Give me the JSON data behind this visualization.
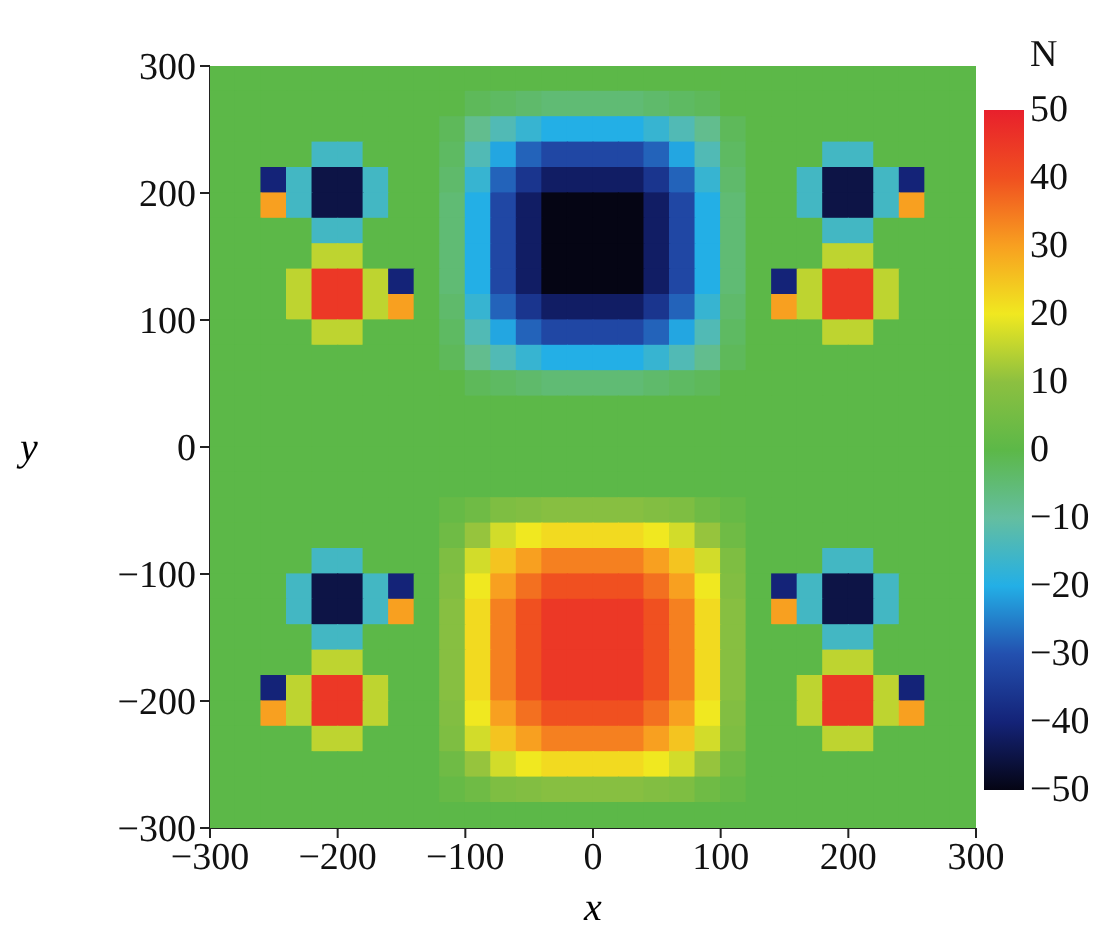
{
  "chart_data": {
    "type": "heatmap",
    "xlabel": "x",
    "ylabel": "y",
    "clabel": "N",
    "xlim": [
      -300,
      300
    ],
    "ylim": [
      -300,
      300
    ],
    "xticks": [
      -300,
      -200,
      -100,
      0,
      100,
      200,
      300
    ],
    "yticks": [
      -300,
      -200,
      -100,
      0,
      100,
      200,
      300
    ],
    "clim": [
      -50,
      50
    ],
    "cticks": [
      -50,
      -40,
      -30,
      -20,
      -10,
      0,
      10,
      20,
      30,
      40,
      50
    ],
    "cells": [
      [
        0,
        0,
        0,
        0,
        0,
        0,
        0,
        0,
        0,
        0,
        0,
        0,
        0,
        0,
        0,
        0,
        0,
        0,
        0,
        0,
        0,
        0,
        0,
        0,
        0,
        0,
        0,
        0,
        0,
        0
      ],
      [
        0,
        0,
        0,
        0,
        0,
        0,
        0,
        0,
        0,
        0,
        -2,
        -3,
        -4,
        -5,
        -5,
        -5,
        -5,
        -4,
        -3,
        -2,
        0,
        0,
        0,
        0,
        0,
        0,
        0,
        0,
        0,
        0
      ],
      [
        0,
        0,
        0,
        0,
        0,
        0,
        0,
        0,
        0,
        -2,
        -8,
        -13,
        -17,
        -20,
        -20,
        -20,
        -20,
        -17,
        -13,
        -8,
        -2,
        0,
        0,
        0,
        0,
        0,
        0,
        0,
        0,
        0
      ],
      [
        0,
        0,
        0,
        0,
        -15,
        -15,
        0,
        0,
        0,
        -3,
        -13,
        -21,
        -28,
        -32,
        -32,
        -32,
        -32,
        -28,
        -21,
        -13,
        -3,
        0,
        0,
        0,
        -15,
        -15,
        0,
        0,
        0,
        0
      ],
      [
        0,
        0,
        -40,
        -15,
        -45,
        -45,
        -15,
        0,
        0,
        -4,
        -17,
        -28,
        -36,
        -42,
        -42,
        -42,
        -42,
        -36,
        -28,
        -17,
        -4,
        0,
        0,
        -15,
        -45,
        -45,
        -15,
        -40,
        0,
        0
      ],
      [
        0,
        0,
        30,
        -15,
        -45,
        -45,
        -15,
        0,
        0,
        -5,
        -20,
        -32,
        -42,
        -50,
        -50,
        -50,
        -50,
        -42,
        -32,
        -20,
        -5,
        0,
        0,
        -15,
        -45,
        -45,
        -15,
        30,
        0,
        0
      ],
      [
        0,
        0,
        0,
        0,
        -15,
        -15,
        0,
        0,
        0,
        -5,
        -20,
        -32,
        -42,
        -50,
        -50,
        -50,
        -50,
        -42,
        -32,
        -20,
        -5,
        0,
        0,
        0,
        -15,
        -15,
        0,
        0,
        0,
        0
      ],
      [
        0,
        0,
        0,
        0,
        15,
        15,
        0,
        0,
        0,
        -5,
        -20,
        -32,
        -42,
        -50,
        -50,
        -50,
        -50,
        -42,
        -32,
        -20,
        -5,
        0,
        0,
        0,
        15,
        15,
        0,
        0,
        0,
        0
      ],
      [
        0,
        0,
        0,
        15,
        45,
        45,
        15,
        -40,
        0,
        -5,
        -20,
        -32,
        -42,
        -50,
        -50,
        -50,
        -50,
        -42,
        -32,
        -20,
        -5,
        0,
        -40,
        15,
        45,
        45,
        15,
        0,
        0,
        0
      ],
      [
        0,
        0,
        0,
        15,
        45,
        45,
        15,
        30,
        0,
        -4,
        -17,
        -28,
        -36,
        -42,
        -42,
        -42,
        -42,
        -36,
        -28,
        -17,
        -4,
        0,
        30,
        15,
        45,
        45,
        15,
        0,
        0,
        0
      ],
      [
        0,
        0,
        0,
        0,
        15,
        15,
        0,
        0,
        0,
        -3,
        -13,
        -21,
        -28,
        -32,
        -32,
        -32,
        -32,
        -28,
        -21,
        -13,
        -3,
        0,
        0,
        0,
        15,
        15,
        0,
        0,
        0,
        0
      ],
      [
        0,
        0,
        0,
        0,
        0,
        0,
        0,
        0,
        0,
        -2,
        -8,
        -13,
        -17,
        -20,
        -20,
        -20,
        -20,
        -17,
        -13,
        -8,
        -2,
        0,
        0,
        0,
        0,
        0,
        0,
        0,
        0,
        0
      ],
      [
        0,
        0,
        0,
        0,
        0,
        0,
        0,
        0,
        0,
        0,
        -2,
        -3,
        -4,
        -5,
        -5,
        -5,
        -5,
        -4,
        -3,
        -2,
        0,
        0,
        0,
        0,
        0,
        0,
        0,
        0,
        0,
        0
      ],
      [
        0,
        0,
        0,
        0,
        0,
        0,
        0,
        0,
        0,
        0,
        0,
        0,
        0,
        0,
        0,
        0,
        0,
        0,
        0,
        0,
        0,
        0,
        0,
        0,
        0,
        0,
        0,
        0,
        0,
        0
      ],
      [
        0,
        0,
        0,
        0,
        0,
        0,
        0,
        0,
        0,
        0,
        0,
        0,
        0,
        0,
        0,
        0,
        0,
        0,
        0,
        0,
        0,
        0,
        0,
        0,
        0,
        0,
        0,
        0,
        0,
        0
      ],
      [
        0,
        0,
        0,
        0,
        0,
        0,
        0,
        0,
        0,
        0,
        0,
        0,
        0,
        0,
        0,
        0,
        0,
        0,
        0,
        0,
        0,
        0,
        0,
        0,
        0,
        0,
        0,
        0,
        0,
        0
      ],
      [
        0,
        0,
        0,
        0,
        0,
        0,
        0,
        0,
        0,
        0,
        0,
        0,
        0,
        0,
        0,
        0,
        0,
        0,
        0,
        0,
        0,
        0,
        0,
        0,
        0,
        0,
        0,
        0,
        0,
        0
      ],
      [
        0,
        0,
        0,
        0,
        0,
        0,
        0,
        0,
        0,
        2,
        4,
        7,
        8,
        9,
        9,
        9,
        9,
        8,
        7,
        4,
        2,
        0,
        0,
        0,
        0,
        0,
        0,
        0,
        0,
        0
      ],
      [
        0,
        0,
        0,
        0,
        0,
        0,
        0,
        0,
        0,
        4,
        11,
        17,
        20,
        22,
        22,
        22,
        22,
        20,
        17,
        11,
        4,
        0,
        0,
        0,
        0,
        0,
        0,
        0,
        0,
        0
      ],
      [
        0,
        0,
        0,
        0,
        -15,
        -15,
        0,
        0,
        0,
        7,
        17,
        25,
        30,
        34,
        34,
        34,
        34,
        30,
        25,
        17,
        7,
        0,
        0,
        0,
        -15,
        -15,
        0,
        0,
        0,
        0
      ],
      [
        0,
        0,
        0,
        -15,
        -45,
        -45,
        -15,
        -40,
        0,
        8,
        20,
        30,
        36,
        40,
        40,
        40,
        40,
        36,
        30,
        20,
        8,
        0,
        -40,
        -15,
        -45,
        -45,
        -15,
        0,
        0,
        0
      ],
      [
        0,
        0,
        0,
        -15,
        -45,
        -45,
        -15,
        30,
        0,
        9,
        22,
        34,
        40,
        45,
        45,
        45,
        45,
        40,
        34,
        22,
        9,
        0,
        30,
        -15,
        -45,
        -45,
        -15,
        0,
        0,
        0
      ],
      [
        0,
        0,
        0,
        0,
        -15,
        -15,
        0,
        0,
        0,
        9,
        22,
        34,
        40,
        45,
        45,
        45,
        45,
        40,
        34,
        22,
        9,
        0,
        0,
        0,
        -15,
        -15,
        0,
        0,
        0,
        0
      ],
      [
        0,
        0,
        0,
        0,
        15,
        15,
        0,
        0,
        0,
        9,
        22,
        34,
        40,
        45,
        45,
        45,
        45,
        40,
        34,
        22,
        9,
        0,
        0,
        0,
        15,
        15,
        0,
        0,
        0,
        0
      ],
      [
        0,
        0,
        -40,
        15,
        45,
        45,
        15,
        0,
        0,
        9,
        22,
        34,
        40,
        45,
        45,
        45,
        45,
        40,
        34,
        22,
        9,
        0,
        0,
        15,
        45,
        45,
        15,
        -40,
        0,
        0
      ],
      [
        0,
        0,
        30,
        15,
        45,
        45,
        15,
        0,
        0,
        8,
        20,
        30,
        36,
        40,
        40,
        40,
        40,
        36,
        30,
        20,
        8,
        0,
        0,
        15,
        45,
        45,
        15,
        30,
        0,
        0
      ],
      [
        0,
        0,
        0,
        0,
        15,
        15,
        0,
        0,
        0,
        7,
        17,
        25,
        30,
        34,
        34,
        34,
        34,
        30,
        25,
        17,
        7,
        0,
        0,
        0,
        15,
        15,
        0,
        0,
        0,
        0
      ],
      [
        0,
        0,
        0,
        0,
        0,
        0,
        0,
        0,
        0,
        4,
        11,
        17,
        20,
        22,
        22,
        22,
        22,
        20,
        17,
        11,
        4,
        0,
        0,
        0,
        0,
        0,
        0,
        0,
        0,
        0
      ],
      [
        0,
        0,
        0,
        0,
        0,
        0,
        0,
        0,
        0,
        2,
        4,
        7,
        8,
        9,
        9,
        9,
        9,
        8,
        7,
        4,
        2,
        0,
        0,
        0,
        0,
        0,
        0,
        0,
        0,
        0
      ],
      [
        0,
        0,
        0,
        0,
        0,
        0,
        0,
        0,
        0,
        0,
        0,
        0,
        0,
        0,
        0,
        0,
        0,
        0,
        0,
        0,
        0,
        0,
        0,
        0,
        0,
        0,
        0,
        0,
        0,
        0
      ]
    ]
  }
}
